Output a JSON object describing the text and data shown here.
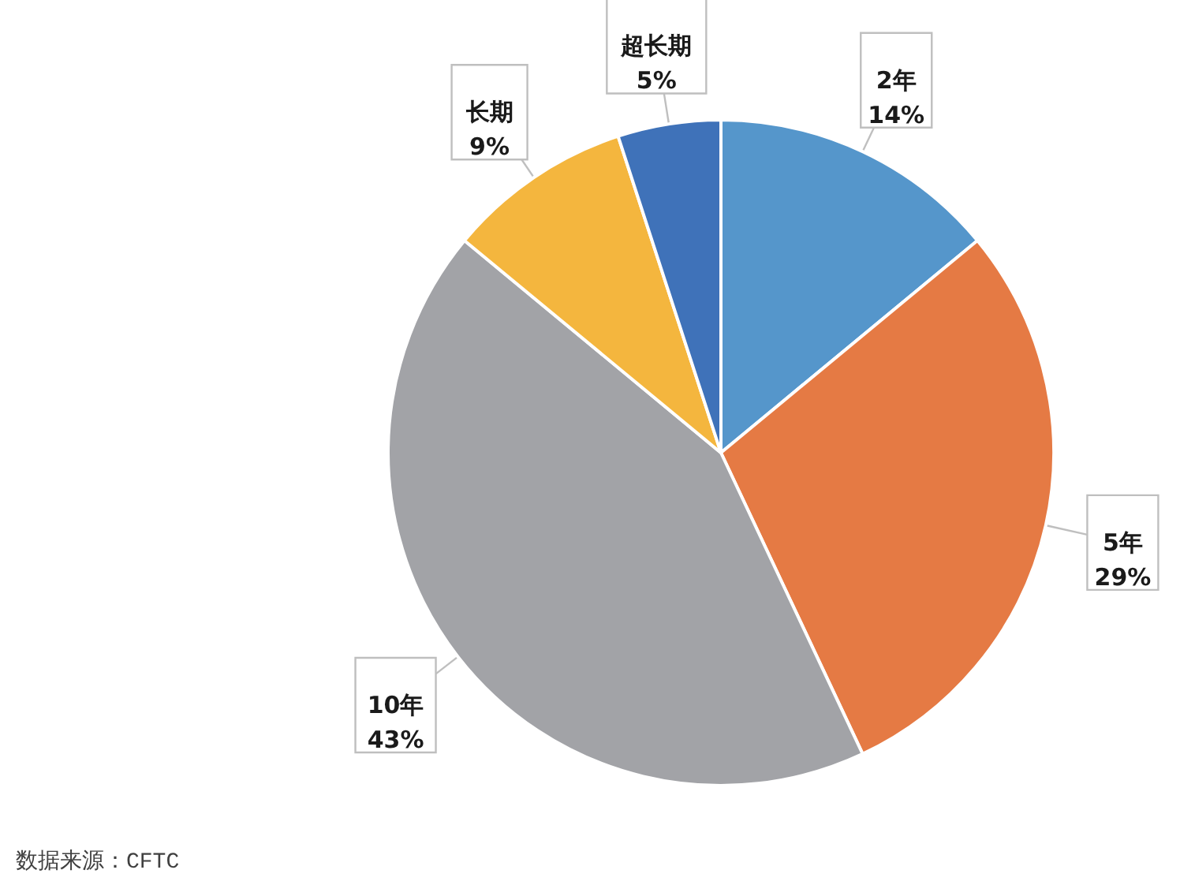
{
  "chart_data": {
    "type": "pie",
    "categories": [
      "2年",
      "5年",
      "10年",
      "长期",
      "超长期"
    ],
    "values": [
      14,
      29,
      43,
      9,
      5
    ],
    "colors": [
      "#5596cb",
      "#e57a44",
      "#a2a3a7",
      "#f4b63e",
      "#3f72b9"
    ],
    "value_labels": [
      "14%",
      "29%",
      "43%",
      "9%",
      "5%"
    ],
    "annotations": [
      "数据来源：CFTC"
    ]
  }
}
